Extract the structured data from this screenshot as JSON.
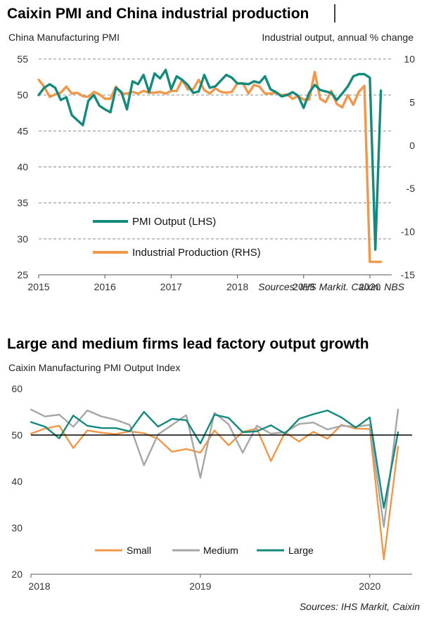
{
  "colors": {
    "teal": "#138a7c",
    "orange": "#f0974a",
    "grey": "#a6a6a6",
    "grid": "#8c8c8c"
  },
  "top": {
    "title": "Caixin PMI and China industrial production",
    "left_axis_title": "China Manufacturing PMI",
    "right_axis_title": "Industrial output, annual % change",
    "source": "Sources: IHS Markit. Caixin. NBS"
  },
  "bottom": {
    "title": "Large and medium firms lead factory output growth",
    "axis_title": "Caixin Manufacturing PMI Output Index",
    "source": "Sources: IHS Markit, Caixin"
  },
  "chart_data": [
    {
      "type": "line",
      "title": "Caixin PMI and China industrial production",
      "ylabel": "China Manufacturing PMI",
      "y2label": "Industrial output, annual % change",
      "ylim": [
        25,
        55
      ],
      "yticks": [
        25,
        30,
        35,
        40,
        45,
        50,
        55
      ],
      "y2lim": [
        -15,
        10
      ],
      "y2ticks": [
        -15,
        -10,
        -5,
        0,
        5,
        10
      ],
      "xlim": [
        2015.0,
        2020.33
      ],
      "xticks": [
        {
          "value": 2015,
          "label": "2015"
        },
        {
          "value": 2016,
          "label": "2016"
        },
        {
          "value": 2017,
          "label": "2017"
        },
        {
          "value": 2018,
          "label": "2018"
        },
        {
          "value": 2019,
          "label": "2019"
        },
        {
          "value": 2020,
          "label": "2020"
        }
      ],
      "dashed_gridlines": true,
      "legend_position": "bottom-left",
      "series": [
        {
          "name": "PMI Output (LHS)",
          "axis": "left",
          "color": "#138a7c",
          "x": [
            2015.0,
            2015.083,
            2015.167,
            2015.25,
            2015.333,
            2015.417,
            2015.5,
            2015.583,
            2015.667,
            2015.75,
            2015.833,
            2015.917,
            2016.0,
            2016.083,
            2016.167,
            2016.25,
            2016.333,
            2016.417,
            2016.5,
            2016.583,
            2016.667,
            2016.75,
            2016.833,
            2016.917,
            2017.0,
            2017.083,
            2017.167,
            2017.25,
            2017.333,
            2017.417,
            2017.5,
            2017.583,
            2017.667,
            2017.75,
            2017.833,
            2017.917,
            2018.0,
            2018.083,
            2018.167,
            2018.25,
            2018.333,
            2018.417,
            2018.5,
            2018.583,
            2018.667,
            2018.75,
            2018.833,
            2018.917,
            2019.0,
            2019.083,
            2019.167,
            2019.25,
            2019.333,
            2019.417,
            2019.5,
            2019.583,
            2019.667,
            2019.75,
            2019.833,
            2019.917,
            2020.0,
            2020.083,
            2020.167
          ],
          "values": [
            50.0,
            51.0,
            51.5,
            51.0,
            49.3,
            49.7,
            47.2,
            46.5,
            45.8,
            49.2,
            50.0,
            48.5,
            48.0,
            47.6,
            51.0,
            50.4,
            48.0,
            51.9,
            51.5,
            52.8,
            50.4,
            53.0,
            52.3,
            53.5,
            50.8,
            52.6,
            52.1,
            51.4,
            50.3,
            50.5,
            52.8,
            51.0,
            51.2,
            52.0,
            52.8,
            52.4,
            51.6,
            51.6,
            51.5,
            51.9,
            51.7,
            52.6,
            50.8,
            50.4,
            49.8,
            50.0,
            50.4,
            49.9,
            48.2,
            50.3,
            51.4,
            50.7,
            50.5,
            50.3,
            49.3,
            50.2,
            51.2,
            52.6,
            52.9,
            52.9,
            52.4,
            28.5,
            50.6
          ]
        },
        {
          "name": "Industrial Production (RHS)",
          "axis": "right",
          "color": "#f0974a",
          "x": [
            2015.0,
            2015.083,
            2015.167,
            2015.25,
            2015.333,
            2015.417,
            2015.5,
            2015.583,
            2015.667,
            2015.75,
            2015.833,
            2015.917,
            2016.0,
            2016.083,
            2016.167,
            2016.25,
            2016.333,
            2016.417,
            2016.5,
            2016.583,
            2016.667,
            2016.75,
            2016.833,
            2016.917,
            2017.0,
            2017.083,
            2017.167,
            2017.25,
            2017.333,
            2017.417,
            2017.5,
            2017.583,
            2017.667,
            2017.75,
            2017.833,
            2017.917,
            2018.0,
            2018.083,
            2018.167,
            2018.25,
            2018.333,
            2018.417,
            2018.5,
            2018.583,
            2018.667,
            2018.75,
            2018.833,
            2018.917,
            2019.0,
            2019.083,
            2019.167,
            2019.25,
            2019.333,
            2019.417,
            2019.5,
            2019.583,
            2019.667,
            2019.75,
            2019.833,
            2019.917,
            2020.0,
            2020.083,
            2020.167
          ],
          "values": [
            7.6,
            6.8,
            5.6,
            5.9,
            6.1,
            6.8,
            6.0,
            6.1,
            5.7,
            5.6,
            6.2,
            5.9,
            5.4,
            5.4,
            6.8,
            6.0,
            6.0,
            6.2,
            6.0,
            6.3,
            6.1,
            6.1,
            6.2,
            6.0,
            6.3,
            6.3,
            7.6,
            6.5,
            6.5,
            7.6,
            6.4,
            6.0,
            6.6,
            6.2,
            6.1,
            6.2,
            7.2,
            7.2,
            6.0,
            7.0,
            6.8,
            6.0,
            6.0,
            6.1,
            5.8,
            5.9,
            5.4,
            5.7,
            5.3,
            5.3,
            8.5,
            5.4,
            5.0,
            6.3,
            4.8,
            4.4,
            5.8,
            4.7,
            6.2,
            6.9,
            -13.5,
            -13.5,
            -13.5
          ]
        }
      ]
    },
    {
      "type": "line",
      "title": "Large and medium firms lead factory output growth",
      "ylabel": "Caixin Manufacturing PMI Output Index",
      "ylim": [
        20,
        60
      ],
      "yticks": [
        20,
        30,
        40,
        50,
        60
      ],
      "xlim": [
        2018.0,
        2020.25
      ],
      "xticks": [
        {
          "value": 2018,
          "label": "2018"
        },
        {
          "value": 2019,
          "label": "2019"
        },
        {
          "value": 2020,
          "label": "2020"
        }
      ],
      "reference_line": 50,
      "legend_position": "bottom-center",
      "series": [
        {
          "name": "Small",
          "color": "#f0974a",
          "x": [
            2018.0,
            2018.083,
            2018.167,
            2018.25,
            2018.333,
            2018.417,
            2018.5,
            2018.583,
            2018.667,
            2018.75,
            2018.833,
            2018.917,
            2019.0,
            2019.083,
            2019.167,
            2019.25,
            2019.333,
            2019.417,
            2019.5,
            2019.583,
            2019.667,
            2019.75,
            2019.833,
            2019.917,
            2020.0,
            2020.083,
            2020.167
          ],
          "values": [
            50.3,
            51.4,
            52.0,
            47.2,
            51.0,
            50.5,
            50.2,
            50.8,
            50.4,
            49.2,
            46.4,
            47.0,
            46.2,
            51.0,
            47.8,
            50.7,
            51.4,
            44.4,
            50.6,
            48.6,
            50.7,
            49.2,
            52.2,
            51.4,
            51.3,
            23.2,
            47.5
          ]
        },
        {
          "name": "Medium",
          "color": "#a6a6a6",
          "x": [
            2018.0,
            2018.083,
            2018.167,
            2018.25,
            2018.333,
            2018.417,
            2018.5,
            2018.583,
            2018.667,
            2018.75,
            2018.833,
            2018.917,
            2019.0,
            2019.083,
            2019.167,
            2019.25,
            2019.333,
            2019.417,
            2019.5,
            2019.583,
            2019.667,
            2019.75,
            2019.833,
            2019.917,
            2020.0,
            2020.083,
            2020.167
          ],
          "values": [
            55.5,
            54.0,
            54.4,
            51.8,
            55.3,
            54.0,
            53.3,
            52.2,
            43.5,
            50.1,
            52.2,
            54.3,
            40.8,
            54.8,
            52.3,
            46.2,
            52.0,
            50.3,
            50.6,
            52.4,
            52.7,
            51.2,
            52.0,
            51.8,
            52.2,
            30.2,
            55.5
          ]
        },
        {
          "name": "Large",
          "color": "#138a7c",
          "x": [
            2018.0,
            2018.083,
            2018.167,
            2018.25,
            2018.333,
            2018.417,
            2018.5,
            2018.583,
            2018.667,
            2018.75,
            2018.833,
            2018.917,
            2019.0,
            2019.083,
            2019.167,
            2019.25,
            2019.333,
            2019.417,
            2019.5,
            2019.583,
            2019.667,
            2019.75,
            2019.833,
            2019.917,
            2020.0,
            2020.083,
            2020.167
          ],
          "values": [
            52.8,
            51.8,
            49.3,
            54.2,
            52.0,
            51.5,
            51.5,
            50.8,
            55.0,
            51.8,
            53.5,
            53.2,
            48.2,
            54.4,
            53.7,
            50.6,
            50.8,
            52.1,
            50.3,
            53.5,
            54.5,
            55.3,
            53.8,
            51.6,
            53.8,
            34.3,
            50.6
          ]
        }
      ]
    }
  ]
}
